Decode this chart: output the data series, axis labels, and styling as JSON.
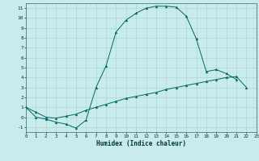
{
  "xlabel": "Humidex (Indice chaleur)",
  "background_color": "#c8ecec",
  "grid_color": "#b0d4d4",
  "line_color": "#006666",
  "curve1_x": [
    0,
    1,
    2,
    3,
    4,
    5,
    6,
    7,
    8,
    9,
    10,
    11,
    12,
    13,
    14,
    15,
    16,
    17,
    18,
    19,
    20,
    21
  ],
  "curve1_y": [
    1,
    0,
    -0.2,
    -0.5,
    -0.7,
    -1.1,
    -0.3,
    3.0,
    5.2,
    8.6,
    9.8,
    10.5,
    11.0,
    11.2,
    11.2,
    11.1,
    10.2,
    7.9,
    4.6,
    4.8,
    4.4,
    3.8
  ],
  "curve2_x": [
    0,
    1,
    2,
    3,
    4,
    5,
    6,
    7,
    8,
    9,
    10,
    11,
    12,
    13,
    14,
    15,
    16,
    17,
    18,
    19,
    20,
    21,
    22,
    23
  ],
  "curve2_y": [
    1,
    0.5,
    0.0,
    -0.1,
    0.1,
    0.3,
    0.7,
    1.0,
    1.3,
    1.6,
    1.9,
    2.1,
    2.3,
    2.5,
    2.8,
    3.0,
    3.2,
    3.4,
    3.6,
    3.8,
    4.0,
    4.1,
    3.0,
    null
  ],
  "xlim": [
    0,
    23
  ],
  "ylim": [
    -1.5,
    11.5
  ],
  "xticks": [
    0,
    1,
    2,
    3,
    4,
    5,
    6,
    7,
    8,
    9,
    10,
    11,
    12,
    13,
    14,
    15,
    16,
    17,
    18,
    19,
    20,
    21,
    22,
    23
  ],
  "yticks": [
    -1,
    0,
    1,
    2,
    3,
    4,
    5,
    6,
    7,
    8,
    9,
    10,
    11
  ]
}
